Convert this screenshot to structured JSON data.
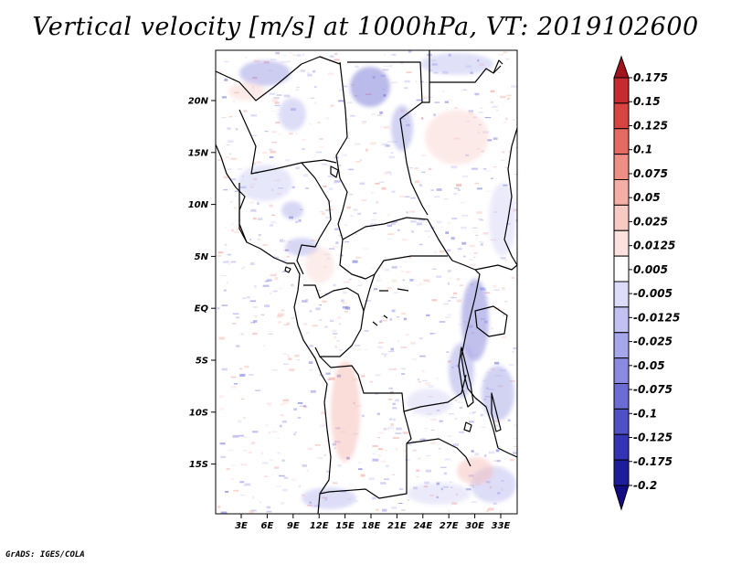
{
  "title": "Vertical velocity [m/s] at 1000hPa, VT: 2019102600",
  "credit": "GrADS: IGES/COLA",
  "map": {
    "lon_labels": [
      "3E",
      "6E",
      "9E",
      "12E",
      "15E",
      "18E",
      "21E",
      "24E",
      "27E",
      "30E",
      "33E"
    ],
    "lat_labels": [
      "20N",
      "15N",
      "10N",
      "5N",
      "EQ",
      "5S",
      "10S",
      "15S"
    ]
  },
  "colorbar": {
    "labels": [
      "0.175",
      "0.15",
      "0.125",
      "0.1",
      "0.075",
      "0.05",
      "0.025",
      "0.0125",
      "0.005",
      "-0.005",
      "-0.0125",
      "-0.025",
      "-0.05",
      "-0.075",
      "-0.1",
      "-0.125",
      "-0.175",
      "-0.2"
    ],
    "colors": [
      "#a0141e",
      "#c42a2e",
      "#d84440",
      "#e46a62",
      "#ee8e84",
      "#f4aea6",
      "#f8cac4",
      "#fbe2de",
      "#ffffff",
      "#dcdcf8",
      "#c2c2f2",
      "#a6a6ec",
      "#8a8ae0",
      "#6c6cd4",
      "#5050c6",
      "#3434b4",
      "#1e1e9c",
      "#140c84"
    ]
  }
}
